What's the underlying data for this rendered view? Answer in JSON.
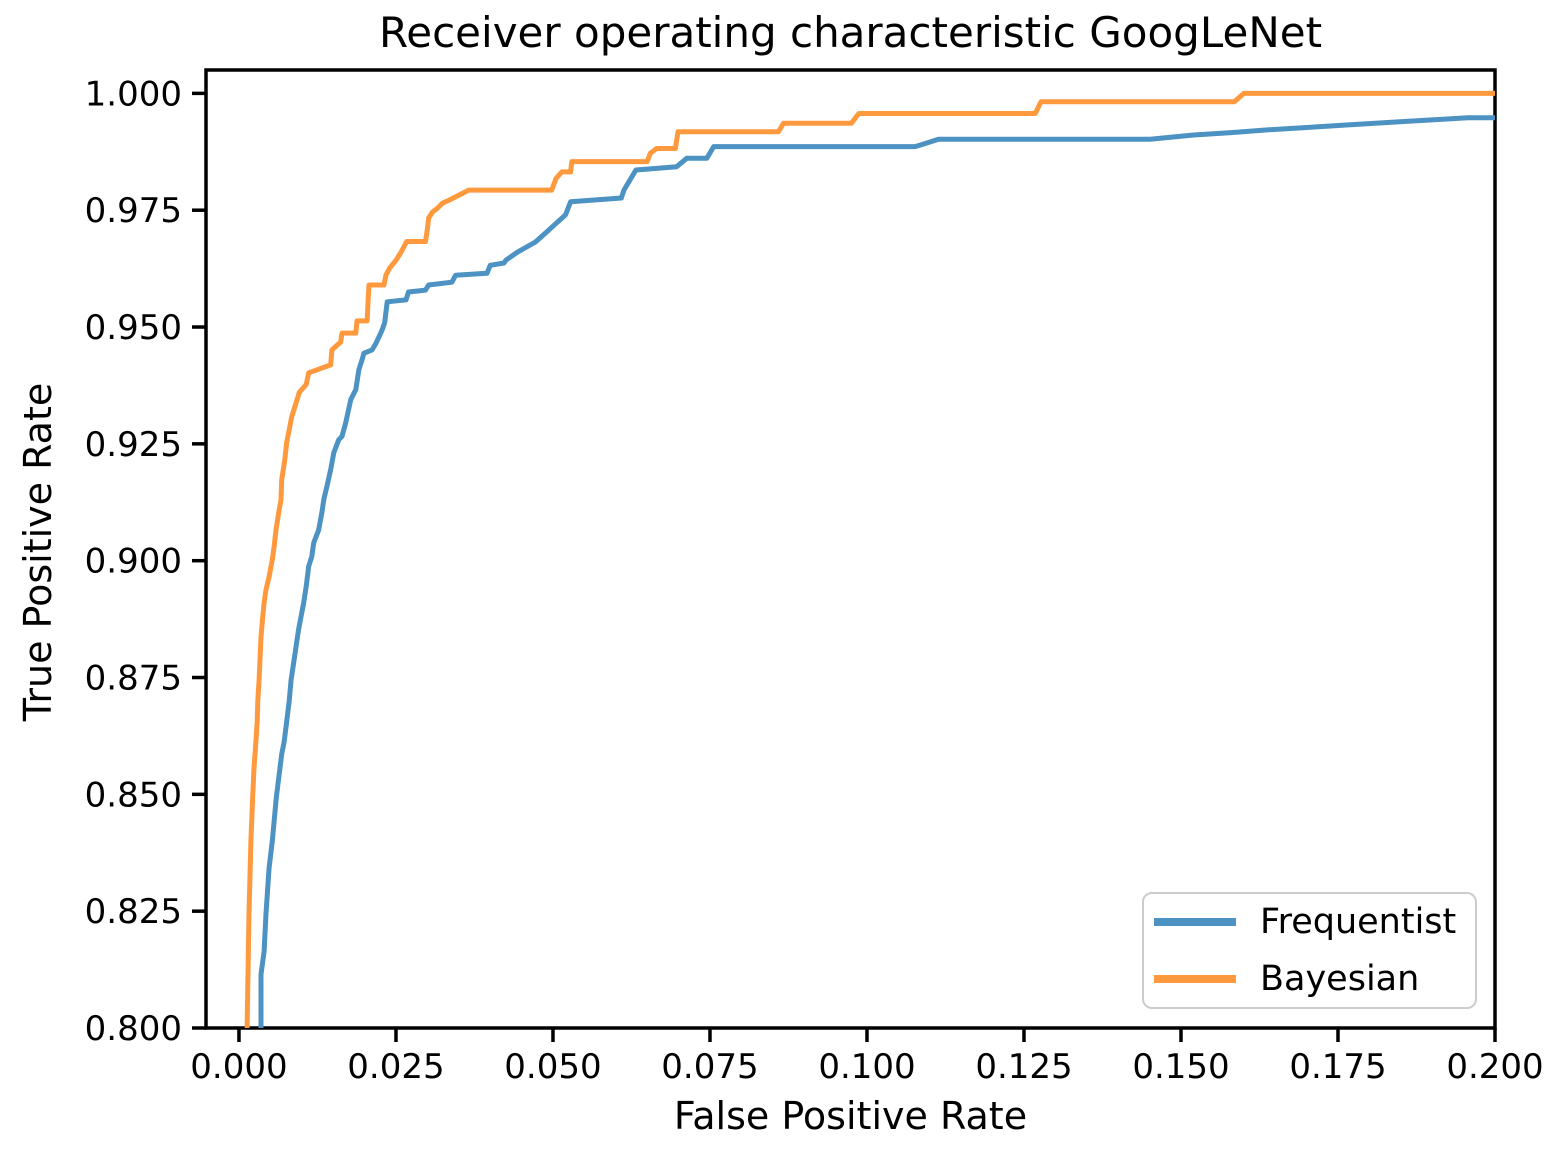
{
  "chart_data": {
    "type": "line",
    "title": "Receiver operating characteristic GoogLeNet",
    "xlabel": "False Positive Rate",
    "ylabel": "True Positive Rate",
    "xlim": [
      -0.00525,
      0.2
    ],
    "ylim": [
      0.8,
      1.005
    ],
    "grid": false,
    "axes_color": "#000000",
    "legend": {
      "position": "lower right",
      "entries": [
        "Frequentist",
        "Bayesian"
      ]
    },
    "x_ticks": [
      0.0,
      0.025,
      0.05,
      0.075,
      0.1,
      0.125,
      0.15,
      0.175,
      0.2
    ],
    "x_tick_labels": [
      "0.000",
      "0.025",
      "0.050",
      "0.075",
      "0.100",
      "0.125",
      "0.150",
      "0.175",
      "0.200"
    ],
    "y_ticks": [
      0.8,
      0.825,
      0.85,
      0.875,
      0.9,
      0.925,
      0.95,
      0.975,
      1.0
    ],
    "y_tick_labels": [
      "0.800",
      "0.825",
      "0.850",
      "0.875",
      "0.900",
      "0.925",
      "0.950",
      "0.975",
      "1.000"
    ],
    "series": [
      {
        "name": "Frequentist",
        "color": "#4C92C3",
        "points": [
          [
            0.0035,
            0.8
          ],
          [
            0.0035,
            0.8115
          ],
          [
            0.004,
            0.8164
          ],
          [
            0.0043,
            0.8245
          ],
          [
            0.0048,
            0.8343
          ],
          [
            0.0053,
            0.84
          ],
          [
            0.0059,
            0.8486
          ],
          [
            0.006,
            0.85
          ],
          [
            0.0064,
            0.8543
          ],
          [
            0.0068,
            0.8586
          ],
          [
            0.0072,
            0.8613
          ],
          [
            0.0076,
            0.8656
          ],
          [
            0.008,
            0.87
          ],
          [
            0.0083,
            0.8745
          ],
          [
            0.0088,
            0.8789
          ],
          [
            0.0091,
            0.8817
          ],
          [
            0.0095,
            0.8853
          ],
          [
            0.01,
            0.8889
          ],
          [
            0.0103,
            0.891
          ],
          [
            0.0107,
            0.8945
          ],
          [
            0.0111,
            0.8988
          ],
          [
            0.0116,
            0.9009
          ],
          [
            0.0119,
            0.9038
          ],
          [
            0.0127,
            0.9066
          ],
          [
            0.0132,
            0.9103
          ],
          [
            0.0135,
            0.9131
          ],
          [
            0.014,
            0.9159
          ],
          [
            0.0146,
            0.9195
          ],
          [
            0.0151,
            0.9231
          ],
          [
            0.0159,
            0.9259
          ],
          [
            0.0164,
            0.9266
          ],
          [
            0.017,
            0.9295
          ],
          [
            0.0178,
            0.9345
          ],
          [
            0.0186,
            0.9366
          ],
          [
            0.0191,
            0.9409
          ],
          [
            0.0196,
            0.943
          ],
          [
            0.0199,
            0.9444
          ],
          [
            0.0212,
            0.9451
          ],
          [
            0.0218,
            0.9465
          ],
          [
            0.0223,
            0.9479
          ],
          [
            0.0228,
            0.9494
          ],
          [
            0.0232,
            0.951
          ],
          [
            0.0236,
            0.9554
          ],
          [
            0.0266,
            0.9558
          ],
          [
            0.027,
            0.9575
          ],
          [
            0.0297,
            0.9579
          ],
          [
            0.0302,
            0.959
          ],
          [
            0.0339,
            0.9596
          ],
          [
            0.0345,
            0.9611
          ],
          [
            0.0395,
            0.9615
          ],
          [
            0.04,
            0.9632
          ],
          [
            0.0422,
            0.9637
          ],
          [
            0.0425,
            0.9643
          ],
          [
            0.0443,
            0.966
          ],
          [
            0.0472,
            0.9682
          ],
          [
            0.0488,
            0.9701
          ],
          [
            0.0506,
            0.9723
          ],
          [
            0.052,
            0.974
          ],
          [
            0.0528,
            0.9768
          ],
          [
            0.0609,
            0.9776
          ],
          [
            0.0613,
            0.9793
          ],
          [
            0.0632,
            0.9836
          ],
          [
            0.0697,
            0.9843
          ],
          [
            0.0713,
            0.9861
          ],
          [
            0.0745,
            0.9861
          ],
          [
            0.0756,
            0.9886
          ],
          [
            0.1077,
            0.9886
          ],
          [
            0.1114,
            0.9902
          ],
          [
            0.1451,
            0.9902
          ],
          [
            0.152,
            0.9911
          ],
          [
            0.158,
            0.9916
          ],
          [
            0.164,
            0.9922
          ],
          [
            0.17,
            0.9927
          ],
          [
            0.176,
            0.9932
          ],
          [
            0.1845,
            0.9939
          ],
          [
            0.192,
            0.9945
          ],
          [
            0.1957,
            0.9948
          ],
          [
            0.2,
            0.9948
          ]
        ]
      },
      {
        "name": "Bayesian",
        "color": "#FF993E",
        "points": [
          [
            0.0013,
            0.8
          ],
          [
            0.0016,
            0.8245
          ],
          [
            0.0019,
            0.84
          ],
          [
            0.0022,
            0.85
          ],
          [
            0.0024,
            0.8556
          ],
          [
            0.0027,
            0.8613
          ],
          [
            0.0029,
            0.8656
          ],
          [
            0.003,
            0.87
          ],
          [
            0.0032,
            0.8745
          ],
          [
            0.0035,
            0.8837
          ],
          [
            0.0037,
            0.8867
          ],
          [
            0.004,
            0.891
          ],
          [
            0.0043,
            0.8938
          ],
          [
            0.0048,
            0.8966
          ],
          [
            0.0053,
            0.9002
          ],
          [
            0.0056,
            0.903
          ],
          [
            0.0059,
            0.9066
          ],
          [
            0.0064,
            0.9109
          ],
          [
            0.0067,
            0.913
          ],
          [
            0.0068,
            0.9173
          ],
          [
            0.0073,
            0.9216
          ],
          [
            0.0076,
            0.9253
          ],
          [
            0.008,
            0.928
          ],
          [
            0.0084,
            0.9308
          ],
          [
            0.0091,
            0.9338
          ],
          [
            0.0096,
            0.936
          ],
          [
            0.0107,
            0.9377
          ],
          [
            0.0111,
            0.9402
          ],
          [
            0.0146,
            0.9419
          ],
          [
            0.0148,
            0.9451
          ],
          [
            0.0162,
            0.9468
          ],
          [
            0.0164,
            0.9487
          ],
          [
            0.0186,
            0.9487
          ],
          [
            0.0188,
            0.9513
          ],
          [
            0.0204,
            0.9513
          ],
          [
            0.0206,
            0.9564
          ],
          [
            0.0207,
            0.959
          ],
          [
            0.0231,
            0.959
          ],
          [
            0.0234,
            0.9611
          ],
          [
            0.024,
            0.9626
          ],
          [
            0.025,
            0.9643
          ],
          [
            0.0258,
            0.966
          ],
          [
            0.0267,
            0.9683
          ],
          [
            0.0297,
            0.9683
          ],
          [
            0.03,
            0.971
          ],
          [
            0.0302,
            0.9733
          ],
          [
            0.0308,
            0.9746
          ],
          [
            0.0316,
            0.9754
          ],
          [
            0.0324,
            0.9765
          ],
          [
            0.0334,
            0.9771
          ],
          [
            0.036,
            0.9789
          ],
          [
            0.0366,
            0.9793
          ],
          [
            0.0498,
            0.9793
          ],
          [
            0.0505,
            0.9818
          ],
          [
            0.0514,
            0.9832
          ],
          [
            0.0528,
            0.9832
          ],
          [
            0.053,
            0.9854
          ],
          [
            0.065,
            0.9854
          ],
          [
            0.0655,
            0.9872
          ],
          [
            0.0665,
            0.9882
          ],
          [
            0.0695,
            0.9882
          ],
          [
            0.0699,
            0.9918
          ],
          [
            0.0859,
            0.9918
          ],
          [
            0.0867,
            0.9936
          ],
          [
            0.0975,
            0.9936
          ],
          [
            0.0987,
            0.9957
          ],
          [
            0.1268,
            0.9957
          ],
          [
            0.1277,
            0.9982
          ],
          [
            0.1585,
            0.9982
          ],
          [
            0.16,
            1.0
          ],
          [
            0.2,
            1.0
          ]
        ]
      }
    ]
  }
}
